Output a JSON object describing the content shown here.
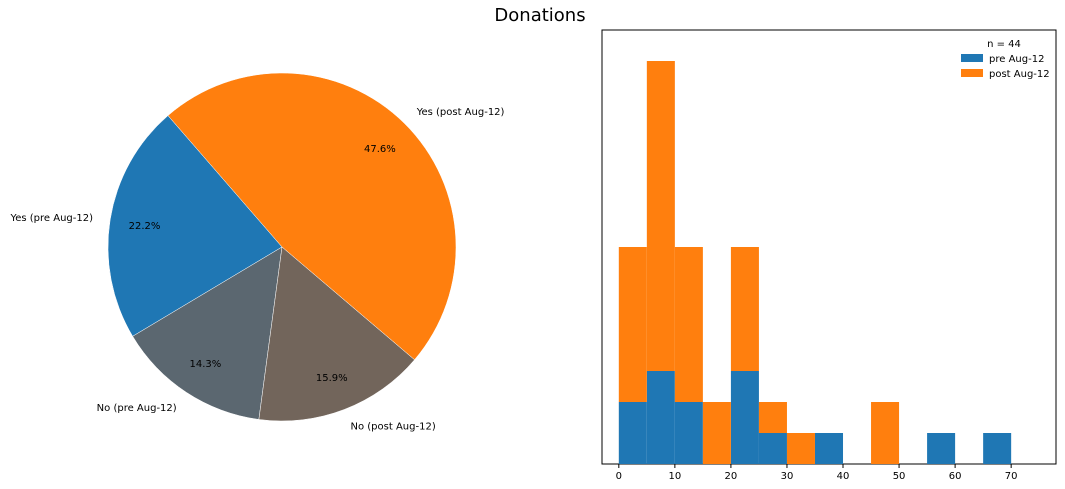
{
  "title": "Donations",
  "chart_data": [
    {
      "type": "pie",
      "labels": [
        "Yes (post Aug-12)",
        "Yes (pre Aug-12)",
        "No (pre Aug-12)",
        "No (post Aug-12)"
      ],
      "values": [
        47.6,
        22.2,
        14.3,
        15.9
      ],
      "pct_labels": [
        "47.6%",
        "22.2%",
        "14.3%",
        "15.9%"
      ],
      "colors": [
        "#ff7f0e",
        "#1f77b4",
        "#5b6770",
        "#72655b"
      ]
    },
    {
      "type": "bar",
      "stacked": true,
      "bin_edges": [
        0,
        5,
        10,
        15,
        20,
        25,
        30,
        35,
        40,
        45,
        50,
        55,
        60,
        65,
        70,
        75
      ],
      "series": [
        {
          "name": "pre Aug-12",
          "color": "#1f77b4",
          "values": [
            2,
            3,
            2,
            0,
            3,
            1,
            0,
            1,
            0,
            0,
            0,
            1,
            0,
            1,
            0
          ]
        },
        {
          "name": "post Aug-12",
          "color": "#ff7f0e",
          "values": [
            5,
            10,
            5,
            2,
            4,
            1,
            1,
            0,
            0,
            2,
            0,
            0,
            0,
            0,
            0
          ]
        }
      ],
      "legend_title": "n = 44",
      "legend_position": "upper-right",
      "xticks": [
        "0",
        "10",
        "20",
        "30",
        "40",
        "50",
        "60",
        "70"
      ],
      "xlim": [
        -3,
        78
      ],
      "ylim": [
        0,
        14
      ],
      "yticks": false,
      "grid": false
    }
  ]
}
